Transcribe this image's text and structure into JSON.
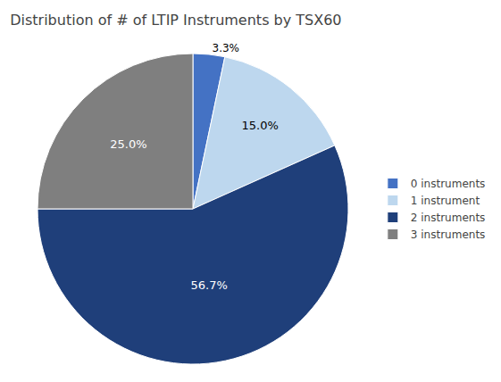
{
  "chart_data": {
    "type": "pie",
    "title": "Distribution of # of LTIP Instruments by TSX60",
    "categories": [
      "0 instruments",
      "1 instrument",
      "2 instruments",
      "3 instruments"
    ],
    "values": [
      3.3,
      15.0,
      56.7,
      25.0
    ],
    "value_labels": [
      "3.3%",
      "15.0%",
      "56.7%",
      "25.0%"
    ],
    "colors": [
      "#4472C4",
      "#BDD7EE",
      "#1F3F7A",
      "#7F7F7F"
    ],
    "data_labels": true,
    "legend": "right"
  }
}
